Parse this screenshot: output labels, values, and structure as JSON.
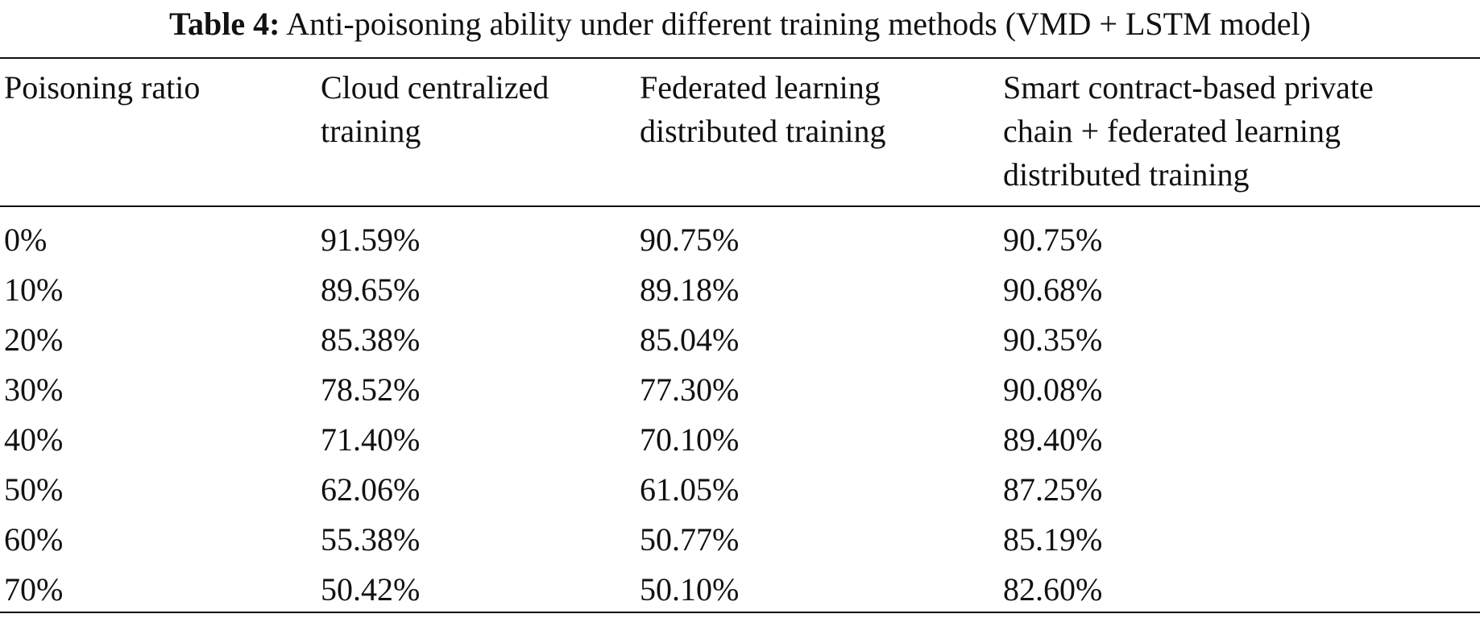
{
  "caption": {
    "label": "Table 4:",
    "text": "Anti-poisoning ability under different training methods (VMD + LSTM model)"
  },
  "headers": {
    "col0": [
      "Poisoning ratio"
    ],
    "col1": [
      "Cloud centralized",
      "training"
    ],
    "col2": [
      "Federated learning",
      "distributed training"
    ],
    "col3": [
      "Smart contract-based private",
      "chain + federated learning",
      "distributed training"
    ]
  },
  "rows": [
    [
      "0%",
      "91.59%",
      "90.75%",
      "90.75%"
    ],
    [
      "10%",
      "89.65%",
      "89.18%",
      "90.68%"
    ],
    [
      "20%",
      "85.38%",
      "85.04%",
      "90.35%"
    ],
    [
      "30%",
      "78.52%",
      "77.30%",
      "90.08%"
    ],
    [
      "40%",
      "71.40%",
      "70.10%",
      "89.40%"
    ],
    [
      "50%",
      "62.06%",
      "61.05%",
      "87.25%"
    ],
    [
      "60%",
      "55.38%",
      "50.77%",
      "85.19%"
    ],
    [
      "70%",
      "50.42%",
      "50.10%",
      "82.60%"
    ]
  ]
}
